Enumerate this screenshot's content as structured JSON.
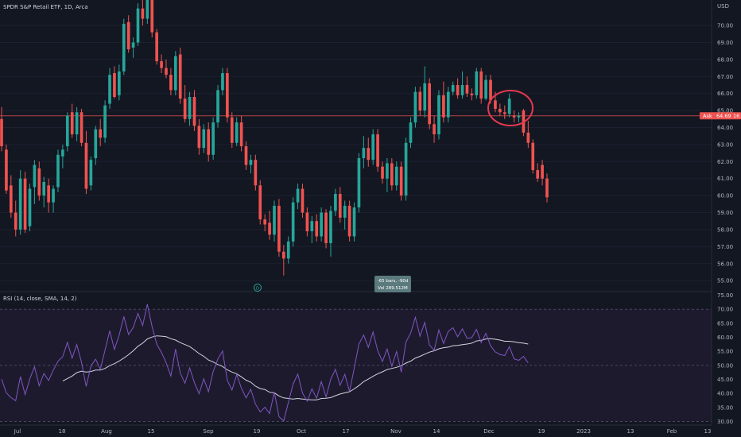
{
  "header": {
    "symbol_title": "SPDR S&P Retail ETF, 1D, Arca",
    "currency": "USD"
  },
  "price_pane": {
    "y_ticks": [
      "55.00",
      "56.00",
      "57.00",
      "58.00",
      "59.00",
      "60.00",
      "61.00",
      "62.00",
      "63.00",
      "64.00",
      "65.00",
      "66.00",
      "67.00",
      "68.00",
      "69.00",
      "70.00"
    ],
    "price_line_value": 64.69,
    "marker_label": "Ask",
    "marker_price": "64.69",
    "marker_suffix": "16",
    "event_marker": "D",
    "tooltip_line1": "-65 bars, -90d",
    "tooltip_line2": "Vol 289.512M",
    "highlight_circle": true
  },
  "rsi_pane": {
    "title": "RSI (14, close, SMA, 14, 2)",
    "y_ticks": [
      "30.00",
      "35.00",
      "40.00",
      "45.00",
      "50.00",
      "55.00",
      "60.00",
      "65.00",
      "70.00",
      "75.00"
    ],
    "bands": {
      "upper": 70,
      "middle": 50,
      "lower": 30
    }
  },
  "x_axis": {
    "labels": [
      "Jul",
      "18",
      "Aug",
      "15",
      "Sep",
      "19",
      "Oct",
      "17",
      "Nov",
      "14",
      "Dec",
      "19",
      "2023",
      "13",
      "Feb",
      "13"
    ]
  },
  "colors": {
    "background": "#131722",
    "up": "#26a69a",
    "down": "#ef5350",
    "rsi_line": "#7e57c2",
    "rsi_sma": "#d1d4dc",
    "rsi_band_fill": "#1e1a2e",
    "price_line": "#ef5350",
    "circle": "#e53950"
  },
  "chart_data": [
    {
      "type": "candlestick",
      "title": "SPDR S&P Retail ETF, 1D, Arca",
      "ylabel": "USD",
      "ylim": [
        54.4,
        71.5
      ],
      "x_tick_labels": [
        "Jul",
        "18",
        "Aug",
        "15",
        "Sep",
        "19",
        "Oct",
        "17",
        "Nov",
        "14",
        "Dec",
        "19",
        "2023",
        "13",
        "Feb",
        "13"
      ],
      "candles": [
        {
          "o": 64.5,
          "h": 65.2,
          "l": 62.6,
          "c": 62.9
        },
        {
          "o": 62.7,
          "h": 63.0,
          "l": 60.1,
          "c": 60.3
        },
        {
          "o": 60.6,
          "h": 61.2,
          "l": 58.7,
          "c": 59.0
        },
        {
          "o": 59.0,
          "h": 59.7,
          "l": 57.6,
          "c": 58.0
        },
        {
          "o": 58.0,
          "h": 61.5,
          "l": 57.7,
          "c": 61.0
        },
        {
          "o": 61.0,
          "h": 61.4,
          "l": 57.8,
          "c": 58.0
        },
        {
          "o": 58.2,
          "h": 60.7,
          "l": 57.9,
          "c": 60.4
        },
        {
          "o": 60.5,
          "h": 62.1,
          "l": 59.5,
          "c": 61.8
        },
        {
          "o": 61.6,
          "h": 62.0,
          "l": 59.7,
          "c": 60.0
        },
        {
          "o": 60.0,
          "h": 61.1,
          "l": 59.3,
          "c": 60.8
        },
        {
          "o": 60.6,
          "h": 61.0,
          "l": 59.0,
          "c": 59.6
        },
        {
          "o": 59.6,
          "h": 60.6,
          "l": 59.0,
          "c": 60.4
        },
        {
          "o": 60.5,
          "h": 62.7,
          "l": 60.2,
          "c": 62.4
        },
        {
          "o": 62.3,
          "h": 63.0,
          "l": 61.6,
          "c": 62.7
        },
        {
          "o": 62.9,
          "h": 64.9,
          "l": 62.6,
          "c": 64.7
        },
        {
          "o": 64.9,
          "h": 65.4,
          "l": 63.4,
          "c": 63.6
        },
        {
          "o": 63.6,
          "h": 65.2,
          "l": 63.2,
          "c": 64.9
        },
        {
          "o": 64.9,
          "h": 65.1,
          "l": 62.9,
          "c": 63.1
        },
        {
          "o": 63.1,
          "h": 63.8,
          "l": 60.1,
          "c": 60.4
        },
        {
          "o": 60.6,
          "h": 62.3,
          "l": 60.3,
          "c": 62.1
        },
        {
          "o": 62.2,
          "h": 64.1,
          "l": 61.8,
          "c": 63.9
        },
        {
          "o": 63.9,
          "h": 64.5,
          "l": 62.9,
          "c": 63.4
        },
        {
          "o": 63.4,
          "h": 65.6,
          "l": 63.1,
          "c": 65.3
        },
        {
          "o": 65.4,
          "h": 67.5,
          "l": 65.1,
          "c": 67.1
        },
        {
          "o": 67.2,
          "h": 67.6,
          "l": 65.7,
          "c": 65.8
        },
        {
          "o": 65.9,
          "h": 67.7,
          "l": 65.6,
          "c": 67.3
        },
        {
          "o": 67.3,
          "h": 70.4,
          "l": 67.1,
          "c": 70.1
        },
        {
          "o": 70.2,
          "h": 70.6,
          "l": 68.4,
          "c": 68.6
        },
        {
          "o": 68.7,
          "h": 69.3,
          "l": 68.1,
          "c": 69.0
        },
        {
          "o": 69.0,
          "h": 71.3,
          "l": 68.8,
          "c": 71.0
        },
        {
          "o": 71.0,
          "h": 71.7,
          "l": 70.0,
          "c": 70.4
        },
        {
          "o": 70.4,
          "h": 71.8,
          "l": 70.1,
          "c": 71.5
        },
        {
          "o": 71.5,
          "h": 71.8,
          "l": 69.3,
          "c": 69.6
        },
        {
          "o": 69.6,
          "h": 69.8,
          "l": 67.7,
          "c": 67.9
        },
        {
          "o": 67.9,
          "h": 68.3,
          "l": 67.2,
          "c": 67.5
        },
        {
          "o": 67.5,
          "h": 68.0,
          "l": 66.9,
          "c": 67.1
        },
        {
          "o": 67.1,
          "h": 67.5,
          "l": 65.9,
          "c": 66.2
        },
        {
          "o": 66.2,
          "h": 68.5,
          "l": 65.9,
          "c": 68.2
        },
        {
          "o": 68.3,
          "h": 68.7,
          "l": 65.4,
          "c": 65.7
        },
        {
          "o": 65.7,
          "h": 66.5,
          "l": 64.3,
          "c": 64.5
        },
        {
          "o": 64.5,
          "h": 66.1,
          "l": 64.1,
          "c": 65.8
        },
        {
          "o": 65.8,
          "h": 66.2,
          "l": 63.8,
          "c": 64.1
        },
        {
          "o": 64.1,
          "h": 64.5,
          "l": 62.4,
          "c": 62.8
        },
        {
          "o": 62.8,
          "h": 64.2,
          "l": 62.5,
          "c": 63.9
        },
        {
          "o": 63.9,
          "h": 64.3,
          "l": 62.0,
          "c": 62.4
        },
        {
          "o": 62.4,
          "h": 64.6,
          "l": 62.1,
          "c": 64.3
        },
        {
          "o": 64.3,
          "h": 66.5,
          "l": 64.0,
          "c": 66.2
        },
        {
          "o": 66.2,
          "h": 67.5,
          "l": 65.9,
          "c": 67.2
        },
        {
          "o": 67.2,
          "h": 67.5,
          "l": 64.3,
          "c": 64.6
        },
        {
          "o": 64.6,
          "h": 64.9,
          "l": 62.8,
          "c": 63.1
        },
        {
          "o": 63.1,
          "h": 64.6,
          "l": 62.9,
          "c": 64.3
        },
        {
          "o": 64.3,
          "h": 64.7,
          "l": 62.6,
          "c": 62.9
        },
        {
          "o": 62.9,
          "h": 63.2,
          "l": 61.5,
          "c": 61.8
        },
        {
          "o": 61.8,
          "h": 62.4,
          "l": 61.3,
          "c": 62.1
        },
        {
          "o": 62.1,
          "h": 62.4,
          "l": 60.3,
          "c": 60.6
        },
        {
          "o": 60.6,
          "h": 60.9,
          "l": 58.3,
          "c": 58.6
        },
        {
          "o": 58.6,
          "h": 58.9,
          "l": 57.9,
          "c": 58.3
        },
        {
          "o": 58.4,
          "h": 59.1,
          "l": 57.4,
          "c": 57.7
        },
        {
          "o": 57.7,
          "h": 59.7,
          "l": 57.3,
          "c": 59.4
        },
        {
          "o": 59.4,
          "h": 59.8,
          "l": 56.4,
          "c": 56.7
        },
        {
          "o": 56.7,
          "h": 57.1,
          "l": 55.3,
          "c": 56.3
        },
        {
          "o": 56.3,
          "h": 57.6,
          "l": 56.0,
          "c": 57.3
        },
        {
          "o": 57.3,
          "h": 59.9,
          "l": 57.0,
          "c": 59.6
        },
        {
          "o": 59.6,
          "h": 60.7,
          "l": 59.2,
          "c": 60.4
        },
        {
          "o": 60.4,
          "h": 60.7,
          "l": 58.7,
          "c": 59.0
        },
        {
          "o": 59.0,
          "h": 59.3,
          "l": 57.6,
          "c": 57.9
        },
        {
          "o": 57.9,
          "h": 58.8,
          "l": 57.2,
          "c": 58.5
        },
        {
          "o": 58.5,
          "h": 58.9,
          "l": 57.3,
          "c": 57.6
        },
        {
          "o": 57.6,
          "h": 59.3,
          "l": 57.3,
          "c": 59.0
        },
        {
          "o": 59.0,
          "h": 59.2,
          "l": 56.9,
          "c": 57.2
        },
        {
          "o": 57.2,
          "h": 59.4,
          "l": 56.4,
          "c": 59.1
        },
        {
          "o": 59.1,
          "h": 60.4,
          "l": 58.8,
          "c": 60.1
        },
        {
          "o": 60.1,
          "h": 60.5,
          "l": 58.4,
          "c": 58.7
        },
        {
          "o": 58.7,
          "h": 59.7,
          "l": 58.0,
          "c": 59.4
        },
        {
          "o": 59.4,
          "h": 59.7,
          "l": 57.3,
          "c": 57.6
        },
        {
          "o": 57.6,
          "h": 59.6,
          "l": 57.3,
          "c": 59.3
        },
        {
          "o": 59.3,
          "h": 62.5,
          "l": 59.0,
          "c": 62.2
        },
        {
          "o": 62.2,
          "h": 63.5,
          "l": 61.6,
          "c": 62.8
        },
        {
          "o": 62.8,
          "h": 63.4,
          "l": 61.7,
          "c": 62.1
        },
        {
          "o": 62.1,
          "h": 63.9,
          "l": 61.8,
          "c": 63.6
        },
        {
          "o": 63.6,
          "h": 63.9,
          "l": 61.4,
          "c": 61.7
        },
        {
          "o": 61.7,
          "h": 62.0,
          "l": 60.7,
          "c": 61.0
        },
        {
          "o": 61.0,
          "h": 62.2,
          "l": 60.2,
          "c": 61.9
        },
        {
          "o": 61.9,
          "h": 62.2,
          "l": 60.3,
          "c": 60.6
        },
        {
          "o": 60.6,
          "h": 62.0,
          "l": 60.3,
          "c": 61.7
        },
        {
          "o": 61.7,
          "h": 62.0,
          "l": 59.7,
          "c": 60.0
        },
        {
          "o": 60.0,
          "h": 63.4,
          "l": 59.7,
          "c": 63.1
        },
        {
          "o": 63.1,
          "h": 64.6,
          "l": 62.8,
          "c": 64.3
        },
        {
          "o": 64.3,
          "h": 66.4,
          "l": 64.0,
          "c": 66.1
        },
        {
          "o": 66.1,
          "h": 66.4,
          "l": 64.7,
          "c": 65.0
        },
        {
          "o": 65.0,
          "h": 67.6,
          "l": 64.6,
          "c": 66.6
        },
        {
          "o": 66.6,
          "h": 66.9,
          "l": 63.9,
          "c": 64.2
        },
        {
          "o": 64.2,
          "h": 64.7,
          "l": 63.1,
          "c": 63.6
        },
        {
          "o": 63.6,
          "h": 66.2,
          "l": 63.3,
          "c": 65.9
        },
        {
          "o": 65.9,
          "h": 66.7,
          "l": 64.3,
          "c": 64.6
        },
        {
          "o": 64.6,
          "h": 66.4,
          "l": 64.3,
          "c": 66.1
        },
        {
          "o": 66.1,
          "h": 66.7,
          "l": 65.9,
          "c": 66.5
        },
        {
          "o": 66.5,
          "h": 66.9,
          "l": 65.7,
          "c": 65.9
        },
        {
          "o": 65.9,
          "h": 67.3,
          "l": 65.7,
          "c": 66.5
        },
        {
          "o": 66.5,
          "h": 67.0,
          "l": 65.8,
          "c": 66.0
        },
        {
          "o": 66.0,
          "h": 66.3,
          "l": 65.6,
          "c": 65.9
        },
        {
          "o": 65.9,
          "h": 67.5,
          "l": 65.7,
          "c": 67.3
        },
        {
          "o": 67.3,
          "h": 67.5,
          "l": 65.4,
          "c": 65.7
        },
        {
          "o": 65.7,
          "h": 67.1,
          "l": 65.6,
          "c": 66.8
        },
        {
          "o": 66.8,
          "h": 67.1,
          "l": 65.4,
          "c": 65.6
        },
        {
          "o": 65.6,
          "h": 66.1,
          "l": 64.9,
          "c": 65.1
        },
        {
          "o": 65.1,
          "h": 65.4,
          "l": 64.7,
          "c": 64.9
        },
        {
          "o": 64.9,
          "h": 65.3,
          "l": 64.5,
          "c": 64.8
        },
        {
          "o": 64.8,
          "h": 66.0,
          "l": 64.6,
          "c": 65.7
        },
        {
          "o": 64.7,
          "h": 65.0,
          "l": 64.3,
          "c": 64.6
        },
        {
          "o": 64.6,
          "h": 64.9,
          "l": 64.3,
          "c": 64.7
        },
        {
          "o": 65.0,
          "h": 65.1,
          "l": 63.5,
          "c": 63.7
        },
        {
          "o": 63.7,
          "h": 64.4,
          "l": 62.8,
          "c": 63.1
        },
        {
          "o": 63.1,
          "h": 63.3,
          "l": 61.3,
          "c": 61.5
        },
        {
          "o": 61.5,
          "h": 61.9,
          "l": 60.8,
          "c": 61.0
        },
        {
          "o": 61.8,
          "h": 62.1,
          "l": 60.6,
          "c": 61.0
        },
        {
          "o": 61.0,
          "h": 61.3,
          "l": 59.6,
          "c": 59.9
        }
      ]
    },
    {
      "type": "line",
      "title": "RSI (14, close, SMA, 14, 2)",
      "ylim": [
        29,
        76
      ],
      "series": [
        {
          "values": [
            45.1,
            40.2,
            38.5,
            37.4,
            46.0,
            39.6,
            45.2,
            49.5,
            42.7,
            47.1,
            44.6,
            48.3,
            51.5,
            53.1,
            58.2,
            52.6,
            57.4,
            51.1,
            42.5,
            49.8,
            52.2,
            48.6,
            55.4,
            62.3,
            55.7,
            60.7,
            67.4,
            61.0,
            63.5,
            68.5,
            64.2,
            71.8,
            63.9,
            57.5,
            54.6,
            50.9,
            46.2,
            55.8,
            47.3,
            43.6,
            49.1,
            43.8,
            39.9,
            45.2,
            40.6,
            47.8,
            52.3,
            55.1,
            44.6,
            41.2,
            46.7,
            41.9,
            38.4,
            41.5,
            36.2,
            33.4,
            35.1,
            32.8,
            40.5,
            31.7,
            30.2,
            36.8,
            43.4,
            46.9,
            40.1,
            37.2,
            41.6,
            38.3,
            44.2,
            38.7,
            45.1,
            48.6,
            42.9,
            46.8,
            40.7,
            48.9,
            57.6,
            60.8,
            56.4,
            61.9,
            55.2,
            51.4,
            55.8,
            49.7,
            54.9,
            47.6,
            58.3,
            61.5,
            67.1,
            60.4,
            65.3,
            57.2,
            55.4,
            62.6,
            57.8,
            62.1,
            63.4,
            60.2,
            63.0,
            59.6,
            59.9,
            62.8,
            58.1,
            61.4,
            57.0,
            54.8,
            53.9,
            53.5,
            56.7,
            52.3,
            51.8,
            53.2,
            50.9
          ]
        },
        {
          "values": [
            null,
            null,
            null,
            null,
            null,
            null,
            null,
            null,
            null,
            null,
            null,
            null,
            null,
            44.4,
            45.3,
            46.2,
            47.4,
            47.9,
            47.6,
            47.8,
            48.3,
            48.3,
            48.9,
            49.9,
            50.6,
            51.5,
            52.6,
            53.8,
            55.2,
            56.8,
            57.9,
            59.4,
            60.1,
            60.5,
            60.4,
            60.2,
            59.5,
            59.0,
            58.1,
            57.4,
            56.7,
            55.5,
            54.2,
            53.2,
            51.9,
            51.2,
            50.3,
            49.6,
            48.4,
            47.6,
            47.0,
            45.9,
            44.7,
            44.0,
            42.6,
            41.7,
            41.4,
            40.4,
            40.2,
            39.1,
            38.4,
            38.2,
            38.0,
            38.2,
            38.0,
            37.8,
            37.7,
            37.7,
            38.2,
            38.3,
            38.5,
            39.2,
            39.8,
            40.2,
            40.6,
            41.6,
            42.8,
            44.2,
            45.1,
            46.1,
            47.0,
            47.7,
            48.5,
            48.9,
            49.3,
            49.9,
            50.8,
            51.5,
            52.6,
            53.2,
            54.0,
            54.7,
            55.2,
            55.9,
            56.3,
            56.5,
            57.0,
            57.1,
            57.4,
            57.6,
            57.9,
            58.7,
            58.9,
            59.4,
            59.5,
            59.3,
            59.0,
            58.6,
            58.6,
            58.4,
            58.1,
            57.9,
            57.6
          ]
        }
      ]
    }
  ]
}
